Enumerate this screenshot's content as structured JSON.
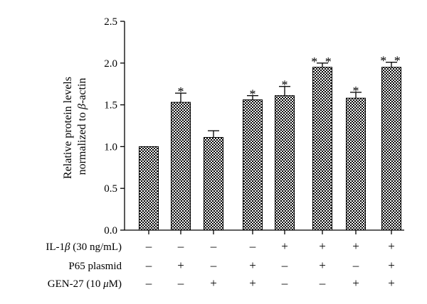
{
  "chart_data": {
    "type": "bar",
    "title": "",
    "xlabel": "",
    "ylabel_line1": "Relative protein levels",
    "ylabel_line2_pre": "normalized to ",
    "ylabel_line2_beta": "β",
    "ylabel_line2_post": "-actin",
    "ylim": [
      0,
      2.5
    ],
    "yticks": [
      "0.0",
      "0.5",
      "1.0",
      "1.5",
      "2.0",
      "2.5"
    ],
    "values": [
      1.0,
      1.53,
      1.11,
      1.56,
      1.61,
      1.95,
      1.58,
      1.95
    ],
    "errors": [
      0.0,
      0.11,
      0.08,
      0.05,
      0.11,
      0.05,
      0.07,
      0.06
    ],
    "significance": [
      "",
      "*",
      "",
      "*",
      "*",
      "**",
      "*",
      "**"
    ],
    "bar_fill": "checkerboard",
    "colors": {
      "bar_dark": "#000000",
      "bar_light": "#ffffff",
      "axis": "#000000"
    },
    "conditions": [
      {
        "label_pre": "IL-1",
        "label_italic": "β",
        "label_post": " (30 ng/mL)",
        "signs": [
          "–",
          "–",
          "–",
          "–",
          "+",
          "+",
          "+",
          "+"
        ]
      },
      {
        "label_pre": "P65 plasmid",
        "label_italic": "",
        "label_post": "",
        "signs": [
          "–",
          "+",
          "–",
          "+",
          "–",
          "+",
          "–",
          "+"
        ]
      },
      {
        "label_pre": "GEN-27 (10 ",
        "label_italic": "μ",
        "label_post": "M)",
        "signs": [
          "–",
          "–",
          "+",
          "+",
          "–",
          "–",
          "+",
          "+"
        ]
      }
    ]
  }
}
